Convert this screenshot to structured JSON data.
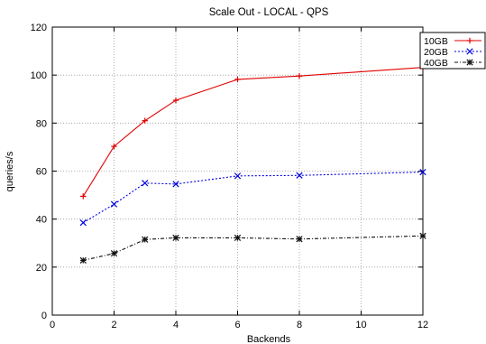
{
  "chart_data": {
    "type": "line",
    "title": "Scale Out - LOCAL - QPS",
    "xlabel": "Backends",
    "ylabel": "queries/s",
    "xlim": [
      0,
      12
    ],
    "ylim": [
      0,
      120
    ],
    "xticks": [
      0,
      2,
      4,
      6,
      8,
      10,
      12
    ],
    "yticks": [
      0,
      20,
      40,
      60,
      80,
      100,
      120
    ],
    "grid": true,
    "legend_position": "top-right",
    "series": [
      {
        "name": "10GB",
        "color": "#e00000",
        "marker": "plus",
        "line": "solid",
        "x": [
          1,
          2,
          3,
          4,
          6,
          8,
          12
        ],
        "y": [
          49.5,
          70.3,
          81,
          89.5,
          98.2,
          99.6,
          103.2
        ]
      },
      {
        "name": "20GB",
        "color": "#0000e0",
        "marker": "cross",
        "line": "dotted",
        "x": [
          1,
          2,
          3,
          4,
          6,
          8,
          12
        ],
        "y": [
          38.5,
          46.2,
          55,
          54.6,
          58,
          58.2,
          59.6
        ]
      },
      {
        "name": "40GB",
        "color": "#111111",
        "marker": "star",
        "line": "dashdot",
        "x": [
          1,
          2,
          3,
          4,
          6,
          8,
          12
        ],
        "y": [
          22.8,
          25.7,
          31.5,
          32.2,
          32.2,
          31.7,
          33
        ]
      }
    ]
  }
}
